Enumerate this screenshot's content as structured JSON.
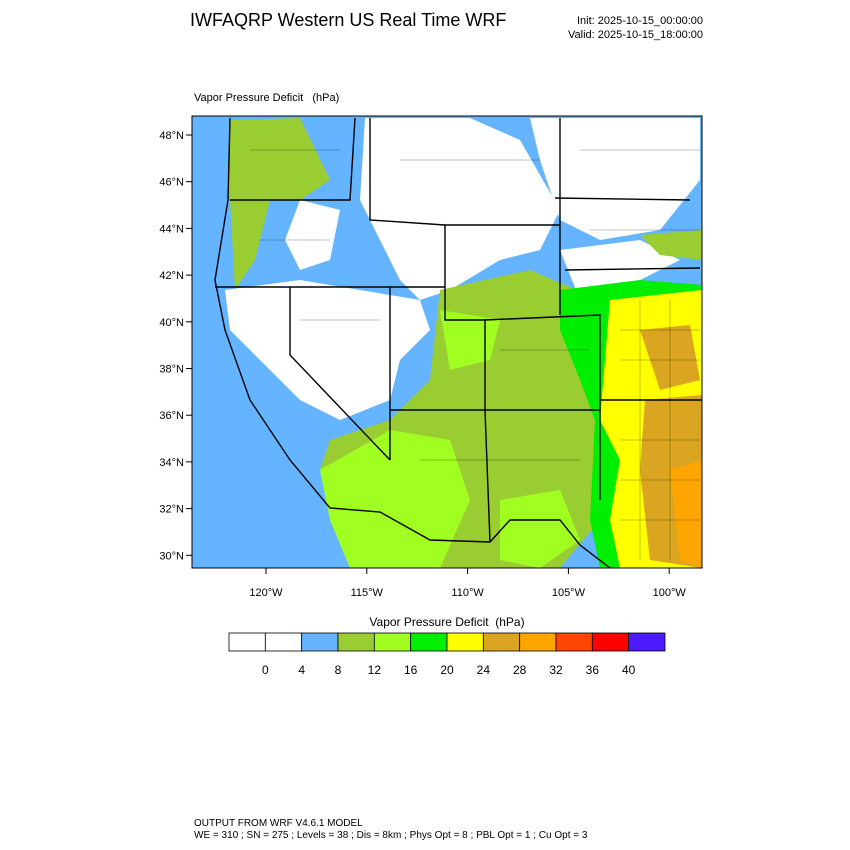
{
  "header": {
    "title": "IWFAQRP Western US Real Time WRF",
    "init": "Init: 2025-10-15_00:00:00",
    "valid": "Valid: 2025-10-15_18:00:00"
  },
  "map": {
    "label": "Vapor Pressure Deficit   (hPa)",
    "lat_labels": [
      "48°N",
      "46°N",
      "44°N",
      "42°N",
      "40°N",
      "38°N",
      "36°N",
      "34°N",
      "32°N",
      "30°N"
    ],
    "lon_labels": [
      "120°W",
      "115°W",
      "110°W",
      "105°W",
      "100°W"
    ]
  },
  "colorbar": {
    "title": "Vapor Pressure Deficit  (hPa)",
    "colors": [
      "#ffffff",
      "#ffffff",
      "#64b4ff",
      "#9acd32",
      "#a0ff20",
      "#00ee00",
      "#ffff00",
      "#daa520",
      "#ffa500",
      "#ff4500",
      "#ff0000",
      "#4b1aff"
    ],
    "ticks": [
      0,
      4,
      8,
      12,
      16,
      20,
      24,
      28,
      32,
      36,
      40
    ]
  },
  "footer": {
    "line1": "OUTPUT FROM WRF V4.6.1 MODEL",
    "line2": "WE = 310 ; SN = 275 ; Levels = 38 ; Dis = 8km ; Phys Opt = 8 ; PBL Opt = 1 ; Cu Opt = 3"
  }
}
